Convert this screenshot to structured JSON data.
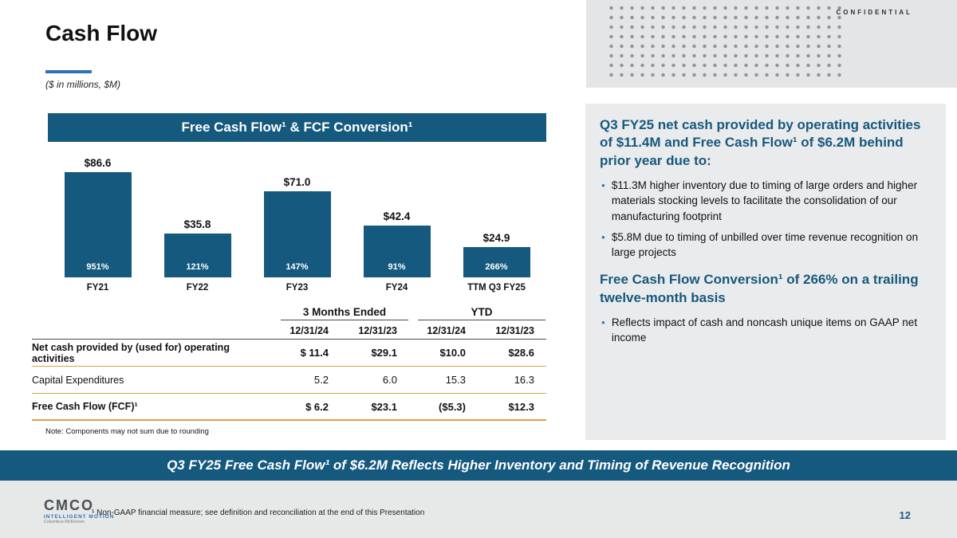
{
  "meta": {
    "confidential": "CONFIDENTIAL",
    "page_number": "12",
    "footnote": "¹ Non-GAAP financial measure; see definition and reconciliation at the end of this Presentation"
  },
  "colors": {
    "primary_blue": "#16597E",
    "accent_blue": "#2E74B5",
    "table_line_orange": "#DDA14A",
    "panel_gray": "#EAEBEC"
  },
  "header": {
    "title": "Cash Flow",
    "subtitle": "($ in millions, $M)"
  },
  "chart_data": {
    "type": "bar",
    "title": "Free Cash Flow¹ & FCF Conversion¹",
    "categories": [
      "FY21",
      "FY22",
      "FY23",
      "FY24",
      "TTM Q3 FY25"
    ],
    "series": [
      {
        "name": "Free Cash Flow ($M)",
        "values": [
          86.6,
          35.8,
          71.0,
          42.4,
          24.9
        ],
        "labels": [
          "$86.6",
          "$35.8",
          "$71.0",
          "$42.4",
          "$24.9"
        ]
      },
      {
        "name": "FCF Conversion (%)",
        "values": [
          951,
          121,
          147,
          91,
          266
        ],
        "labels": [
          "951%",
          "121%",
          "147%",
          "91%",
          "266%"
        ]
      }
    ],
    "ylim": [
      0,
      90
    ],
    "grid": false,
    "legend": "none",
    "bar_color": "#16597E"
  },
  "table": {
    "group_headers": [
      {
        "label": "3 Months Ended"
      },
      {
        "label": "YTD"
      }
    ],
    "col_headers": [
      "12/31/24",
      "12/31/23",
      "12/31/24",
      "12/31/23"
    ],
    "rows": [
      {
        "label": "Net cash provided by (used for) operating activities",
        "bold": true,
        "values": [
          "$ 11.4",
          "$29.1",
          "$10.0",
          "$28.6"
        ]
      },
      {
        "label": "Capital Expenditures",
        "bold": false,
        "values": [
          "5.2",
          "6.0",
          "15.3",
          "16.3"
        ]
      },
      {
        "label": "Free Cash Flow (FCF)¹",
        "bold": true,
        "values": [
          "$ 6.2",
          "$23.1",
          "($5.3)",
          "$12.3"
        ]
      }
    ],
    "note": "Note: Components may not sum due to rounding"
  },
  "commentary": {
    "heading1": "Q3 FY25 net cash provided by operating activities of $11.4M and Free Cash Flow¹ of $6.2M behind prior year due to:",
    "bullets1": [
      "$11.3M higher inventory due to timing of large orders and higher materials stocking levels to facilitate the consolidation of our manufacturing footprint",
      "$5.8M due to timing of unbilled over time revenue recognition on large projects"
    ],
    "heading2": "Free Cash Flow Conversion¹ of 266% on a trailing twelve-month basis",
    "bullets2": [
      "Reflects impact of cash and noncash unique items on GAAP net income"
    ]
  },
  "banner": {
    "text": "Q3 FY25 Free Cash Flow¹ of $6.2M Reflects Higher Inventory and Timing of Revenue Recognition"
  },
  "footer": {
    "logo_text": "CMCO",
    "logo_tagline": "INTELLIGENT MOTION",
    "logo_subtext": "Columbus McKinnon"
  }
}
